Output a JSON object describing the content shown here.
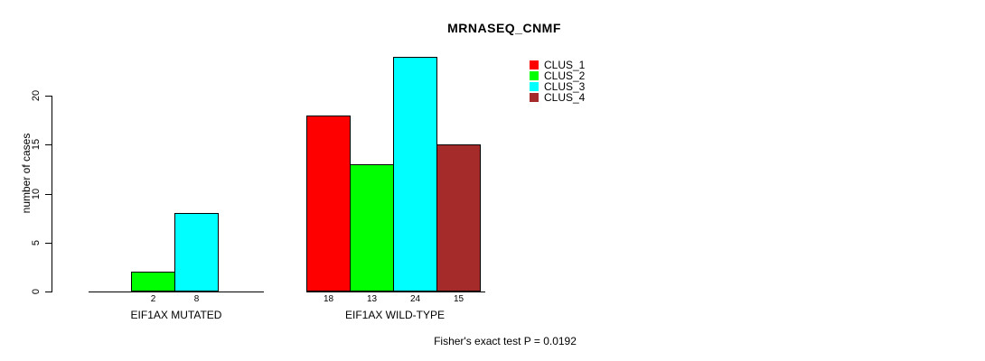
{
  "chart_data": {
    "type": "bar",
    "title": "MRNASEQ_CNMF",
    "ylabel": "number of cases",
    "xlabel": "",
    "ylim": [
      0,
      20
    ],
    "yticks": [
      0,
      5,
      10,
      15,
      20
    ],
    "grid": false,
    "legend_position": "top-right",
    "legend": [
      {
        "label": "CLUS_1",
        "color": "#ff0000"
      },
      {
        "label": "CLUS_2",
        "color": "#00ff00"
      },
      {
        "label": "CLUS_3",
        "color": "#00ffff"
      },
      {
        "label": "CLUS_4",
        "color": "#a52a2a"
      }
    ],
    "groups": [
      {
        "label": "EIF1AX MUTATED",
        "bars": [
          {
            "cluster": "CLUS_2",
            "value": 2,
            "color": "#00ff00"
          },
          {
            "cluster": "CLUS_3",
            "value": 8,
            "color": "#00ffff"
          }
        ]
      },
      {
        "label": "EIF1AX WILD-TYPE",
        "bars": [
          {
            "cluster": "CLUS_1",
            "value": 18,
            "color": "#ff0000"
          },
          {
            "cluster": "CLUS_2",
            "value": 13,
            "color": "#00ff00"
          },
          {
            "cluster": "CLUS_3",
            "value": 24,
            "color": "#00ffff"
          },
          {
            "cluster": "CLUS_4",
            "value": 15,
            "color": "#a52a2a"
          }
        ]
      }
    ],
    "annotation": "Fisher's exact test P = 0.0192"
  }
}
